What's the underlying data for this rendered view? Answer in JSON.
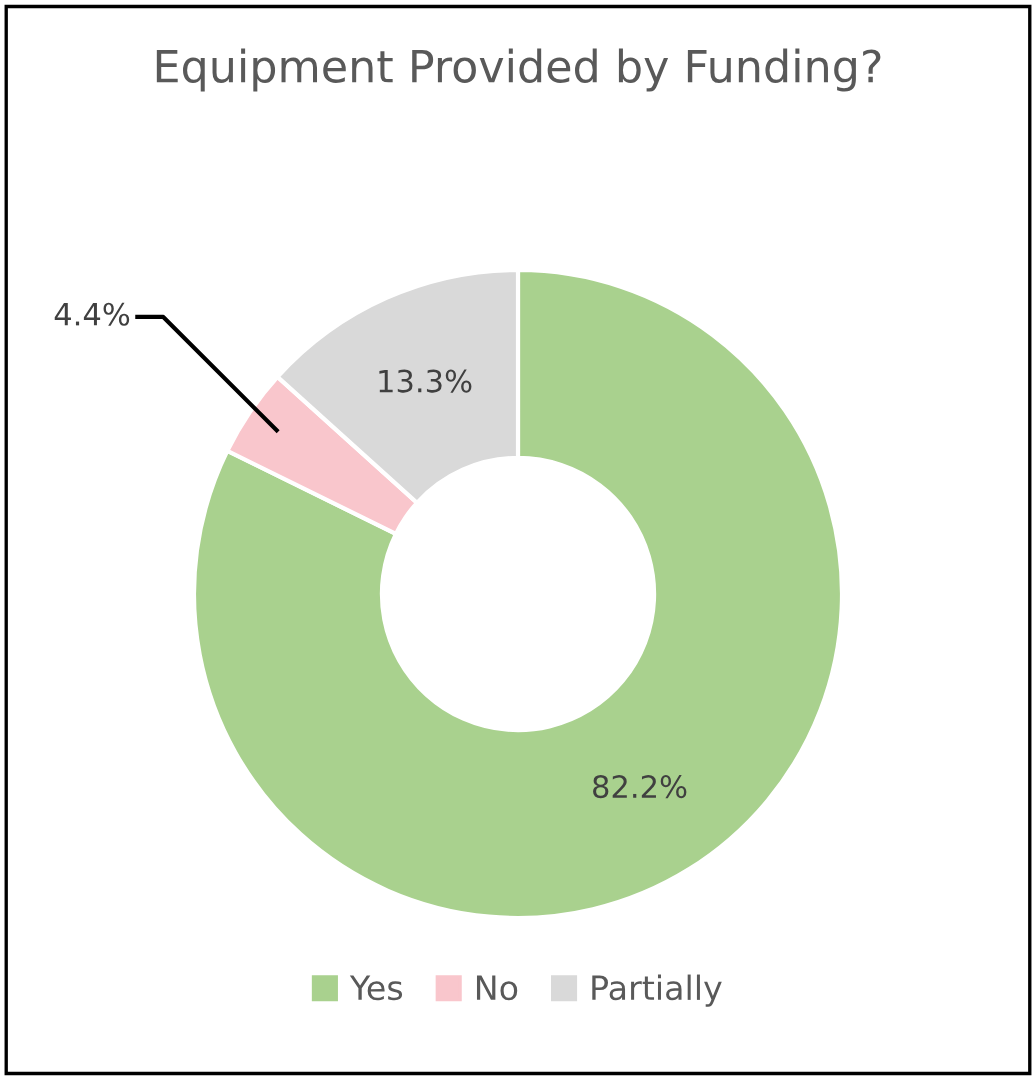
{
  "chart_data": {
    "type": "donut",
    "title": "Equipment Provided by Funding?",
    "categories": [
      "Yes",
      "No",
      "Partially"
    ],
    "values": [
      82.2,
      4.4,
      13.3
    ],
    "colors": [
      "#a9d18e",
      "#f9c6cc",
      "#d9d9d9"
    ],
    "value_labels": [
      "82.2%",
      "4.4%",
      "13.3%"
    ],
    "legend": "bottom"
  }
}
